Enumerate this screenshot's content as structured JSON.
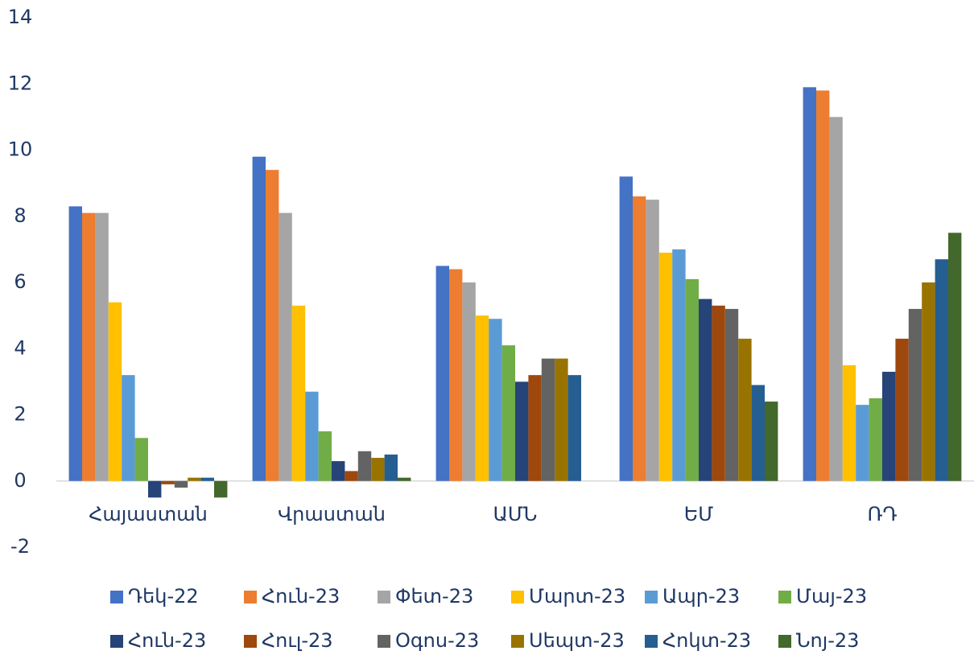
{
  "chart_data": {
    "type": "bar",
    "categories": [
      "Հայաստան",
      "Վրաստան",
      "ԱՄՆ",
      "ԵՄ",
      "ՌԴ"
    ],
    "series": [
      {
        "name": "Դեկ-22",
        "color": "#4472c4",
        "values": [
          8.3,
          9.8,
          6.5,
          9.2,
          11.9
        ]
      },
      {
        "name": "Հուն-23",
        "color": "#ed7d31",
        "values": [
          8.1,
          9.4,
          6.4,
          8.6,
          11.8
        ]
      },
      {
        "name": "Փետ-23",
        "color": "#a5a5a5",
        "values": [
          8.1,
          8.1,
          6.0,
          8.5,
          11.0
        ]
      },
      {
        "name": "Մարտ-23",
        "color": "#ffc000",
        "values": [
          5.4,
          5.3,
          5.0,
          6.9,
          3.5
        ]
      },
      {
        "name": "Ապր-23",
        "color": "#5b9bd5",
        "values": [
          3.2,
          2.7,
          4.9,
          7.0,
          2.3
        ]
      },
      {
        "name": "Մայ-23",
        "color": "#70ad47",
        "values": [
          1.3,
          1.5,
          4.1,
          6.1,
          2.5
        ]
      },
      {
        "name": "Հուն-23",
        "color": "#264478",
        "values": [
          -0.5,
          0.6,
          3.0,
          5.5,
          3.3
        ]
      },
      {
        "name": "Հուլ-23",
        "color": "#9e480e",
        "values": [
          -0.1,
          0.3,
          3.2,
          5.3,
          4.3
        ]
      },
      {
        "name": "Օգոս-23",
        "color": "#636363",
        "values": [
          -0.2,
          0.9,
          3.7,
          5.2,
          5.2
        ]
      },
      {
        "name": "Սեպտ-23",
        "color": "#997300",
        "values": [
          0.1,
          0.7,
          3.7,
          4.3,
          6.0
        ]
      },
      {
        "name": "Հոկտ-23",
        "color": "#255e91",
        "values": [
          0.1,
          0.8,
          3.2,
          2.9,
          6.7
        ]
      },
      {
        "name": "Նոյ-23",
        "color": "#43682b",
        "values": [
          -0.5,
          0.1,
          null,
          2.4,
          7.5
        ]
      }
    ],
    "ylim": [
      -2,
      14
    ],
    "yticks": [
      -2,
      0,
      2,
      4,
      6,
      8,
      10,
      12,
      14
    ]
  }
}
